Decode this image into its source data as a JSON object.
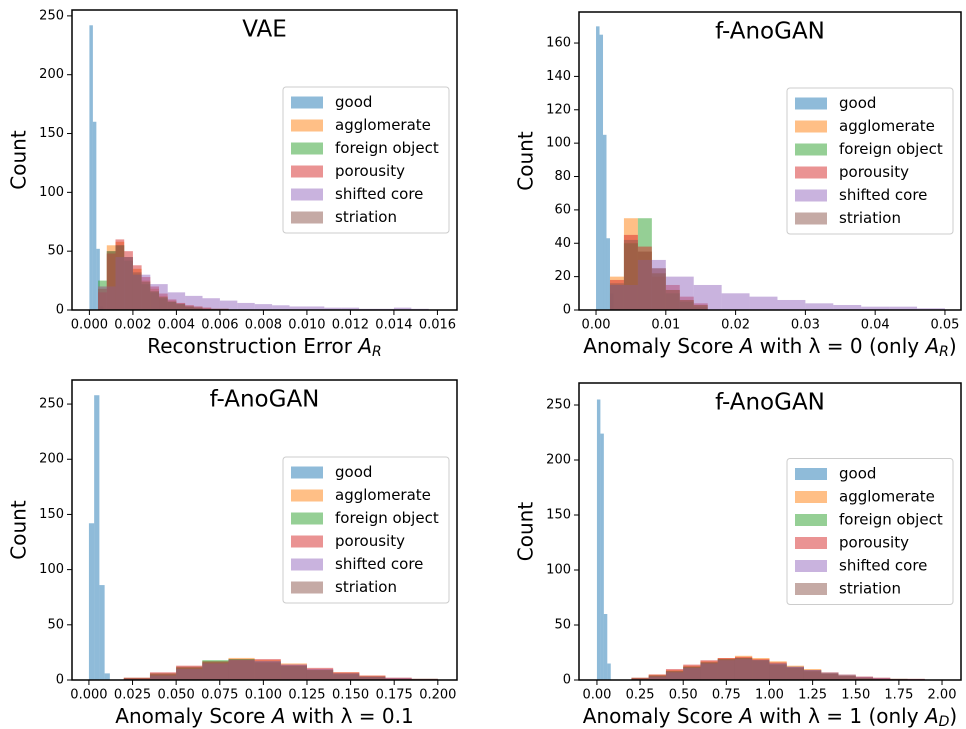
{
  "chart_data": [
    {
      "type": "histogram",
      "title": "VAE",
      "ylabel": "Count",
      "xlabel": [
        {
          "text": "Reconstruction Error "
        },
        {
          "text": "A",
          "style": "italic"
        },
        {
          "text": "R",
          "style": "sub"
        }
      ],
      "xlim": [
        -0.0008,
        0.0169
      ],
      "ylim": [
        0,
        255
      ],
      "legend": "center right",
      "xticks": [
        {
          "value": 0,
          "label": "0.000"
        },
        {
          "value": 0.002,
          "label": "0.002"
        },
        {
          "value": 0.004,
          "label": "0.004"
        },
        {
          "value": 0.006,
          "label": "0.006"
        },
        {
          "value": 0.008,
          "label": "0.008"
        },
        {
          "value": 0.01,
          "label": "0.010"
        },
        {
          "value": 0.012,
          "label": "0.012"
        },
        {
          "value": 0.014,
          "label": "0.014"
        },
        {
          "value": 0.016,
          "label": "0.016"
        }
      ],
      "yticks": [
        0,
        50,
        100,
        150,
        200,
        250
      ],
      "series": [
        {
          "name": "good",
          "color": "#1f77b4",
          "bins": [
            0,
            0.00016,
            0.00032,
            0.00048,
            0.00064
          ],
          "values": [
            242,
            160,
            52,
            3
          ]
        },
        {
          "name": "agglomerate",
          "color": "#ff7f0e",
          "bins": [
            0.0004,
            0.0008,
            0.0012,
            0.0016,
            0.002,
            0.0024,
            0.0028,
            0.0032,
            0.0036,
            0.004,
            0.0044,
            0.0048,
            0.0052,
            0.0056,
            0.006,
            0.0064
          ],
          "values": [
            20,
            55,
            58,
            45,
            35,
            25,
            18,
            12,
            8,
            6,
            4,
            3,
            2,
            1,
            1
          ]
        },
        {
          "name": "foreign object",
          "color": "#2ca02c",
          "bins": [
            0.0004,
            0.0008,
            0.0012,
            0.0016,
            0.002,
            0.0024,
            0.0028,
            0.0032,
            0.0036,
            0.004,
            0.0044,
            0.0048,
            0.0052,
            0.0056,
            0.006,
            0.0064
          ],
          "values": [
            25,
            50,
            55,
            42,
            30,
            22,
            15,
            10,
            7,
            5,
            3,
            2,
            1,
            1,
            1
          ]
        },
        {
          "name": "porousity",
          "color": "#d62728",
          "bins": [
            0.0004,
            0.0008,
            0.0012,
            0.0016,
            0.002,
            0.0024,
            0.0028,
            0.0032,
            0.0036,
            0.004,
            0.0044,
            0.0048,
            0.0052,
            0.0056,
            0.006,
            0.0064
          ],
          "values": [
            15,
            48,
            60,
            50,
            38,
            28,
            20,
            14,
            9,
            6,
            4,
            3,
            2,
            1,
            1
          ]
        },
        {
          "name": "shifted core",
          "color": "#9467bd",
          "bins": [
            0.0004,
            0.0012,
            0.002,
            0.0028,
            0.0036,
            0.0044,
            0.0052,
            0.006,
            0.0068,
            0.0076,
            0.0084,
            0.0092,
            0.01,
            0.0108,
            0.0116,
            0.0124,
            0.0132,
            0.014,
            0.0148,
            0.0156
          ],
          "values": [
            20,
            45,
            30,
            22,
            15,
            12,
            10,
            8,
            6,
            5,
            4,
            3,
            3,
            2,
            2,
            1,
            1,
            2,
            1
          ]
        },
        {
          "name": "striation",
          "color": "#8c564b",
          "bins": [
            0.0004,
            0.0008,
            0.0012,
            0.0016,
            0.002,
            0.0024,
            0.0028,
            0.0032,
            0.0036,
            0.004,
            0.0044,
            0.0048,
            0.0052,
            0.0056,
            0.006,
            0.0064
          ],
          "values": [
            18,
            50,
            55,
            45,
            32,
            24,
            16,
            11,
            7,
            5,
            3,
            2,
            1,
            1,
            1
          ]
        }
      ]
    },
    {
      "type": "histogram",
      "title": "f-AnoGAN",
      "ylabel": "Count",
      "xlabel": [
        {
          "text": "Anomaly Score "
        },
        {
          "text": "A",
          "style": "italic"
        },
        {
          "text": " with λ = 0 (only "
        },
        {
          "text": "A",
          "style": "italic"
        },
        {
          "text": "R",
          "style": "sub"
        },
        {
          "text": ")"
        }
      ],
      "xlim": [
        -0.00244,
        0.0523
      ],
      "ylim": [
        0,
        178.6
      ],
      "legend": "center right",
      "xticks": [
        {
          "value": 0,
          "label": "0.00"
        },
        {
          "value": 0.01,
          "label": "0.01"
        },
        {
          "value": 0.02,
          "label": "0.02"
        },
        {
          "value": 0.03,
          "label": "0.03"
        },
        {
          "value": 0.04,
          "label": "0.04"
        },
        {
          "value": 0.05,
          "label": "0.05"
        }
      ],
      "yticks": [
        0,
        20,
        40,
        60,
        80,
        100,
        120,
        140,
        160
      ],
      "series": [
        {
          "name": "good",
          "color": "#1f77b4",
          "bins": [
            0,
            0.0005,
            0.001,
            0.0015,
            0.002,
            0.0025
          ],
          "values": [
            170,
            165,
            105,
            43,
            10
          ]
        },
        {
          "name": "agglomerate",
          "color": "#ff7f0e",
          "bins": [
            0.002,
            0.004,
            0.006,
            0.008,
            0.01,
            0.012,
            0.014,
            0.016
          ],
          "values": [
            20,
            55,
            35,
            20,
            12,
            6,
            3
          ]
        },
        {
          "name": "foreign object",
          "color": "#2ca02c",
          "bins": [
            0.002,
            0.004,
            0.006,
            0.008,
            0.01,
            0.012,
            0.014,
            0.016
          ],
          "values": [
            15,
            40,
            55,
            25,
            10,
            5,
            2
          ]
        },
        {
          "name": "porousity",
          "color": "#d62728",
          "bins": [
            0.002,
            0.004,
            0.006,
            0.008,
            0.01,
            0.012,
            0.014,
            0.016
          ],
          "values": [
            18,
            45,
            38,
            25,
            15,
            8,
            4
          ]
        },
        {
          "name": "shifted core",
          "color": "#9467bd",
          "bins": [
            0.002,
            0.006,
            0.01,
            0.014,
            0.018,
            0.022,
            0.026,
            0.03,
            0.034,
            0.038,
            0.042,
            0.046,
            0.05
          ],
          "values": [
            15,
            30,
            20,
            15,
            10,
            8,
            6,
            4,
            3,
            2,
            2,
            1
          ]
        },
        {
          "name": "striation",
          "color": "#8c564b",
          "bins": [
            0.002,
            0.004,
            0.006,
            0.008,
            0.01,
            0.012,
            0.014,
            0.016
          ],
          "values": [
            16,
            42,
            35,
            22,
            12,
            6,
            3
          ]
        }
      ]
    },
    {
      "type": "histogram",
      "title": "f-AnoGAN",
      "ylabel": "Count",
      "xlabel": [
        {
          "text": "Anomaly Score "
        },
        {
          "text": "A",
          "style": "italic"
        },
        {
          "text": " with λ = 0.1"
        }
      ],
      "xlim": [
        -0.0097,
        0.211
      ],
      "ylim": [
        0,
        271.8
      ],
      "legend": "center right",
      "xticks": [
        {
          "value": 0,
          "label": "0.000"
        },
        {
          "value": 0.025,
          "label": "0.025"
        },
        {
          "value": 0.05,
          "label": "0.050"
        },
        {
          "value": 0.075,
          "label": "0.075"
        },
        {
          "value": 0.1,
          "label": "0.100"
        },
        {
          "value": 0.125,
          "label": "0.125"
        },
        {
          "value": 0.15,
          "label": "0.150"
        },
        {
          "value": 0.175,
          "label": "0.175"
        },
        {
          "value": 0.2,
          "label": "0.200"
        }
      ],
      "yticks": [
        0,
        50,
        100,
        150,
        200,
        250
      ],
      "series": [
        {
          "name": "good",
          "color": "#1f77b4",
          "bins": [
            0,
            0.003,
            0.006,
            0.009,
            0.012
          ],
          "values": [
            142,
            258,
            86,
            6
          ]
        },
        {
          "name": "agglomerate",
          "color": "#ff7f0e",
          "bins": [
            0.02,
            0.035,
            0.05,
            0.065,
            0.08,
            0.095,
            0.11,
            0.125,
            0.14,
            0.155,
            0.17,
            0.185,
            0.2
          ],
          "values": [
            2,
            6,
            12,
            17,
            20,
            18,
            15,
            10,
            7,
            4,
            2,
            1
          ]
        },
        {
          "name": "foreign object",
          "color": "#2ca02c",
          "bins": [
            0.02,
            0.035,
            0.05,
            0.065,
            0.08,
            0.095,
            0.11,
            0.125,
            0.14,
            0.155,
            0.17,
            0.185,
            0.2
          ],
          "values": [
            1,
            5,
            11,
            18,
            19,
            17,
            13,
            9,
            5,
            3,
            1,
            1
          ]
        },
        {
          "name": "porousity",
          "color": "#d62728",
          "bins": [
            0.02,
            0.035,
            0.05,
            0.065,
            0.08,
            0.095,
            0.11,
            0.125,
            0.14,
            0.155,
            0.17,
            0.185,
            0.2
          ],
          "values": [
            2,
            7,
            13,
            16,
            18,
            19,
            14,
            11,
            7,
            4,
            2,
            1
          ]
        },
        {
          "name": "shifted core",
          "color": "#9467bd",
          "bins": [
            0.02,
            0.035,
            0.05,
            0.065,
            0.08,
            0.095,
            0.11,
            0.125,
            0.14,
            0.155,
            0.17,
            0.185,
            0.2
          ],
          "values": [
            1,
            4,
            10,
            15,
            18,
            17,
            14,
            10,
            6,
            3,
            2,
            1
          ]
        },
        {
          "name": "striation",
          "color": "#8c564b",
          "bins": [
            0.02,
            0.035,
            0.05,
            0.065,
            0.08,
            0.095,
            0.11,
            0.125,
            0.14,
            0.155,
            0.17,
            0.185,
            0.2
          ],
          "values": [
            2,
            6,
            12,
            17,
            19,
            16,
            13,
            9,
            6,
            3,
            1,
            1
          ]
        }
      ]
    },
    {
      "type": "histogram",
      "title": "f-AnoGAN",
      "ylabel": "Count",
      "xlabel": [
        {
          "text": "Anomaly Score "
        },
        {
          "text": "A",
          "style": "italic"
        },
        {
          "text": " with λ = 1 (only "
        },
        {
          "text": "A",
          "style": "italic"
        },
        {
          "text": "D",
          "style": "sub"
        },
        {
          "text": ")"
        }
      ],
      "xlim": [
        -0.104,
        2.11
      ],
      "ylim": [
        0,
        270
      ],
      "legend": "center right",
      "xticks": [
        {
          "value": 0,
          "label": "0.00"
        },
        {
          "value": 0.25,
          "label": "0.25"
        },
        {
          "value": 0.5,
          "label": "0.50"
        },
        {
          "value": 0.75,
          "label": "0.75"
        },
        {
          "value": 1,
          "label": "1.00"
        },
        {
          "value": 1.25,
          "label": "1.25"
        },
        {
          "value": 1.5,
          "label": "1.50"
        },
        {
          "value": 1.75,
          "label": "1.75"
        },
        {
          "value": 2,
          "label": "2.00"
        }
      ],
      "yticks": [
        0,
        50,
        100,
        150,
        200,
        250
      ],
      "series": [
        {
          "name": "good",
          "color": "#1f77b4",
          "bins": [
            0,
            0.02,
            0.04,
            0.06,
            0.08
          ],
          "values": [
            255,
            224,
            60,
            15
          ]
        },
        {
          "name": "agglomerate",
          "color": "#ff7f0e",
          "bins": [
            0.2,
            0.3,
            0.4,
            0.5,
            0.6,
            0.7,
            0.8,
            0.9,
            1.0,
            1.1,
            1.2,
            1.3,
            1.4,
            1.5,
            1.6,
            1.7,
            1.8,
            1.9
          ],
          "values": [
            2,
            5,
            9,
            13,
            17,
            20,
            22,
            20,
            17,
            13,
            10,
            7,
            5,
            3,
            2,
            1,
            1
          ]
        },
        {
          "name": "foreign object",
          "color": "#2ca02c",
          "bins": [
            0.2,
            0.3,
            0.4,
            0.5,
            0.6,
            0.7,
            0.8,
            0.9,
            1.0,
            1.1,
            1.2,
            1.3,
            1.4,
            1.5,
            1.6,
            1.7,
            1.8,
            1.9
          ],
          "values": [
            1,
            4,
            8,
            12,
            16,
            19,
            20,
            18,
            15,
            12,
            9,
            6,
            4,
            2,
            1,
            1,
            0
          ]
        },
        {
          "name": "porousity",
          "color": "#d62728",
          "bins": [
            0.2,
            0.3,
            0.4,
            0.5,
            0.6,
            0.7,
            0.8,
            0.9,
            1.0,
            1.1,
            1.2,
            1.3,
            1.4,
            1.5,
            1.6,
            1.7,
            1.8,
            1.9
          ],
          "values": [
            2,
            5,
            10,
            14,
            18,
            20,
            21,
            19,
            16,
            12,
            9,
            6,
            4,
            3,
            2,
            1,
            1
          ]
        },
        {
          "name": "shifted core",
          "color": "#9467bd",
          "bins": [
            0.2,
            0.3,
            0.4,
            0.5,
            0.6,
            0.7,
            0.8,
            0.9,
            1.0,
            1.1,
            1.2,
            1.3,
            1.4,
            1.5,
            1.6,
            1.7,
            1.8,
            1.9
          ],
          "values": [
            1,
            3,
            7,
            11,
            15,
            18,
            19,
            18,
            15,
            12,
            9,
            7,
            5,
            3,
            2,
            1,
            1
          ]
        },
        {
          "name": "striation",
          "color": "#8c564b",
          "bins": [
            0.2,
            0.3,
            0.4,
            0.5,
            0.6,
            0.7,
            0.8,
            0.9,
            1.0,
            1.1,
            1.2,
            1.3,
            1.4,
            1.5,
            1.6,
            1.7,
            1.8,
            1.9
          ],
          "values": [
            2,
            4,
            8,
            12,
            16,
            19,
            20,
            18,
            14,
            11,
            8,
            6,
            4,
            2,
            1,
            1,
            0
          ]
        }
      ]
    }
  ]
}
